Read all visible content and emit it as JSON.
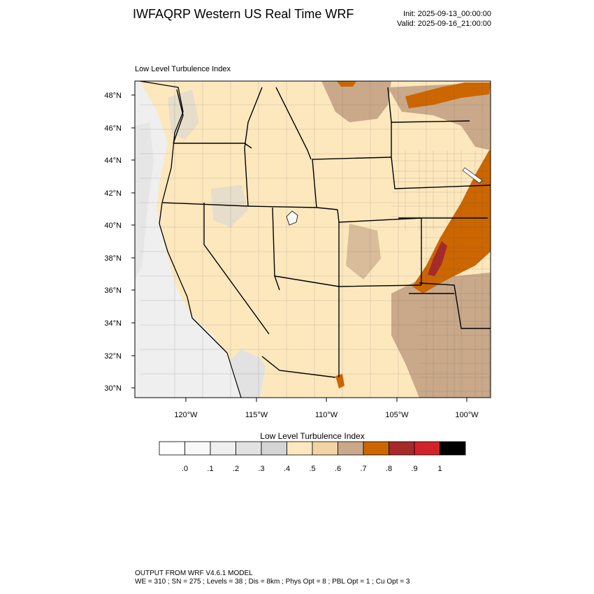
{
  "header": {
    "title": "IWFAQRP Western US Real Time WRF",
    "init": "Init: 2025-09-13_00:00:00",
    "valid": "Valid: 2025-09-16_21:00:00"
  },
  "plot": {
    "label": "Low Level Turbulence Index",
    "lat_ticks": [
      "48°N",
      "46°N",
      "44°N",
      "42°N",
      "40°N",
      "38°N",
      "36°N",
      "34°N",
      "32°N",
      "30°N"
    ],
    "lon_ticks": [
      "120°W",
      "115°W",
      "110°W",
      "105°W",
      "100°W"
    ]
  },
  "colorbar": {
    "title": "Low Level Turbulence Index",
    "colors": [
      "#ffffff",
      "#f8f8f8",
      "#efefef",
      "#e2e2e2",
      "#d4d4d6",
      "#fde8be",
      "#f2d3a4",
      "#c9a98a",
      "#cc6600",
      "#a52a2a",
      "#d2232a",
      "#000000"
    ],
    "labels": [
      ".0",
      ".1",
      ".2",
      ".3",
      ".4",
      ".5",
      ".6",
      ".7",
      ".8",
      ".9",
      "1"
    ]
  },
  "footer": {
    "line1": "OUTPUT FROM WRF V4.6.1 MODEL",
    "line2": "WE = 310 ; SN = 275 ; Levels = 38 ; Dis = 8km ; Phys Opt = 8 ; PBL Opt = 1 ; Cu Opt = 3"
  }
}
